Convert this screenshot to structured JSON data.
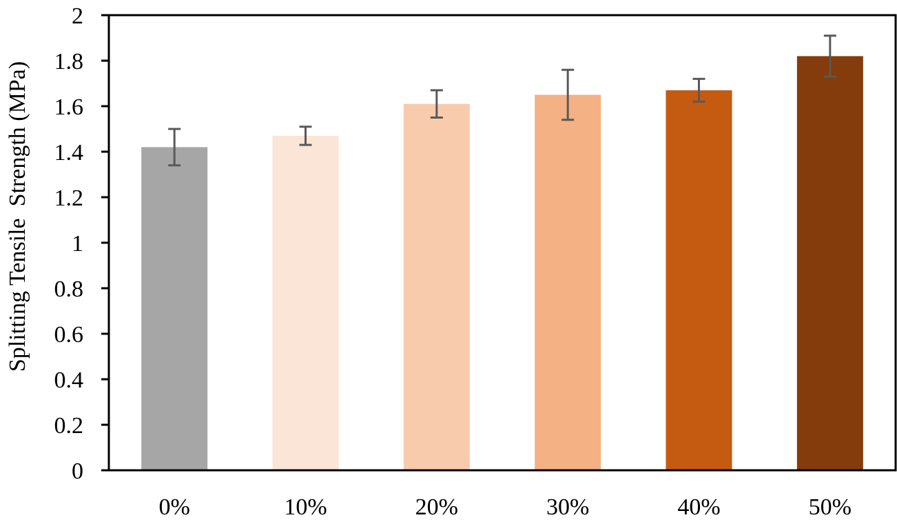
{
  "chart_data": {
    "type": "bar",
    "title": "",
    "xlabel": "",
    "ylabel": "Splitting Tensile  Strength (MPa)",
    "ylim": [
      0,
      2
    ],
    "yticks": [
      0,
      0.2,
      0.4,
      0.6,
      0.8,
      1,
      1.2,
      1.4,
      1.6,
      1.8,
      2
    ],
    "ytick_labels": [
      "0",
      "0.2",
      "0.4",
      "0.6",
      "0.8",
      "1",
      "1.2",
      "1.4",
      "1.6",
      "1.8",
      "2"
    ],
    "grid": false,
    "legend": null,
    "categories": [
      "0%",
      "10%",
      "20%",
      "30%",
      "40%",
      "50%"
    ],
    "values": [
      1.42,
      1.47,
      1.61,
      1.65,
      1.67,
      1.82
    ],
    "error_low": [
      1.34,
      1.43,
      1.55,
      1.54,
      1.62,
      1.73
    ],
    "error_high": [
      1.5,
      1.51,
      1.67,
      1.76,
      1.72,
      1.91
    ],
    "colors": [
      "#a6a6a6",
      "#fbe5d6",
      "#f8cbad",
      "#f4b183",
      "#c55a11",
      "#843c0c"
    ],
    "error_bar_color": "#595959"
  }
}
